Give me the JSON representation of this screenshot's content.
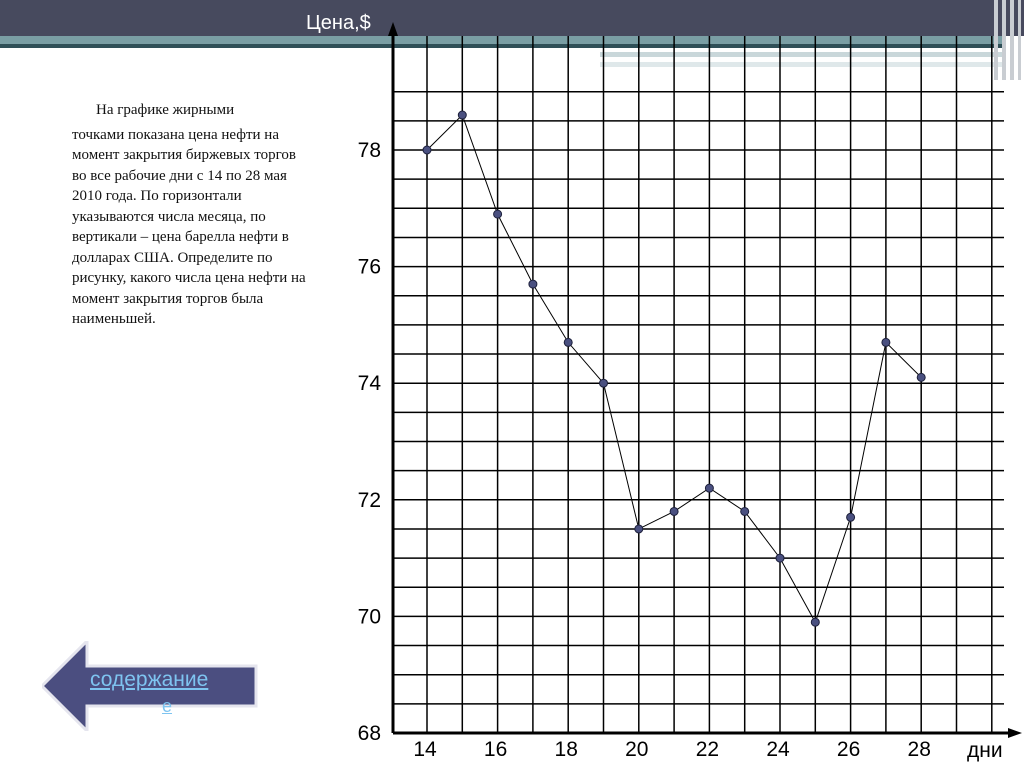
{
  "description": {
    "line1": "На графике жирными",
    "rest": "точками показана цена нефти на момент закрытия биржевых торгов во все рабочие дни с 14 по 28 мая 2010 года. По горизонтали указываются числа месяца, по вертикали – цена барелла нефти в долларах США. Определите по рисунку, какого числа цена нефти на момент закрытия торгов была наименьшей."
  },
  "nav_button": {
    "label": "содержание",
    "label_tail": "е"
  },
  "colors": {
    "header": "#474a5e",
    "accent_teal": "#7a9ea4",
    "point_fill": "#4a5080",
    "button_fill": "#4b4e80"
  },
  "chart_data": {
    "type": "line",
    "ylabel": "Цена,$",
    "xlabel": "дни",
    "x_ticks": [
      14,
      16,
      18,
      20,
      22,
      24,
      26,
      28
    ],
    "y_ticks": [
      68,
      70,
      72,
      74,
      76,
      78
    ],
    "xlim": [
      13,
      30
    ],
    "ylim": [
      68,
      79
    ],
    "grid": true,
    "series": [
      {
        "x": [
          14,
          15,
          16,
          17,
          18,
          19,
          20,
          21,
          22,
          23,
          24,
          25,
          26,
          27,
          28
        ],
        "y": [
          78.0,
          78.6,
          76.9,
          75.7,
          74.7,
          74.0,
          71.5,
          71.8,
          72.2,
          71.8,
          71.0,
          69.9,
          71.7,
          74.7,
          74.1
        ]
      }
    ]
  }
}
